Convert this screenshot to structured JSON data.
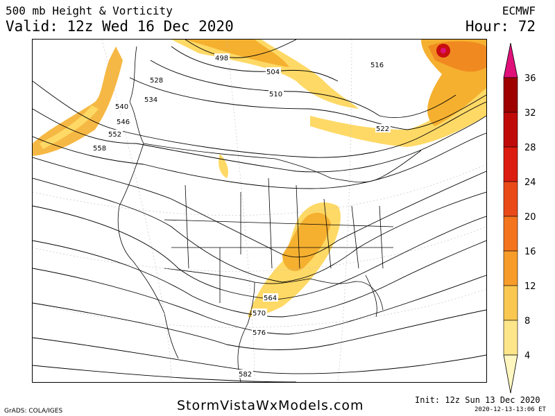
{
  "header": {
    "title": "500 mb Height & Vorticity",
    "valid": "Valid: 12z Wed 16 Dec 2020",
    "model": "ECMWF",
    "hour": "Hour: 72"
  },
  "map": {
    "contour_labels": [
      "498",
      "504",
      "510",
      "516",
      "522",
      "528",
      "534",
      "540",
      "546",
      "552",
      "558",
      "564",
      "570",
      "576",
      "582"
    ],
    "colors": {
      "vort_4": "#fff4a0",
      "vort_8": "#ffd966",
      "vort_12": "#f5b030",
      "vort_16": "#f08a20",
      "vort_20": "#e85a18",
      "vort_24": "#e02a10",
      "vort_28": "#c80e0e",
      "vort_32": "#a00808",
      "vort_36": "#e0107a"
    }
  },
  "colorbar": {
    "ticks": [
      "36",
      "32",
      "28",
      "24",
      "20",
      "16",
      "12",
      "8",
      "4"
    ],
    "colors": [
      "#e0107a",
      "#9e0000",
      "#c00a0a",
      "#dc1c10",
      "#ea4a18",
      "#f4741e",
      "#f79c28",
      "#fac850",
      "#fde58a",
      "#fff6c0"
    ]
  },
  "footer": {
    "website": "StormVistaWxModels.com",
    "credit": "GrADS: COLA/IGES",
    "init": "Init: 12z Sun 13 Dec 2020",
    "timestamp": "2020-12-13-13:06 ET"
  }
}
